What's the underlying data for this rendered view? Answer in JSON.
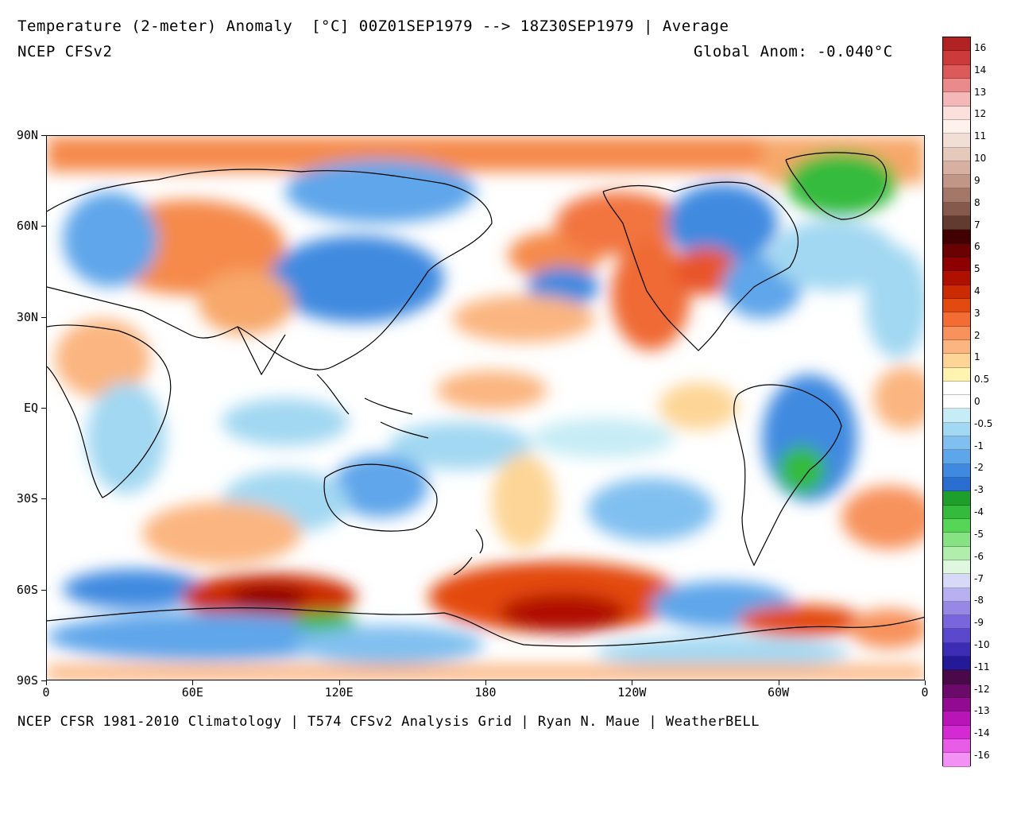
{
  "header": {
    "title": "Temperature (2-meter) Anomaly  [°C] 00Z01SEP1979 --> 18Z30SEP1979 | Average",
    "model": "NCEP CFSv2",
    "global_anom": "Global Anom: -0.040°C"
  },
  "footer": "NCEP CFSR 1981-2010 Climatology | T574 CFSv2 Analysis Grid | Ryan N. Maue | WeatherBELL",
  "map": {
    "lat_labels": [
      "90N",
      "60N",
      "30N",
      "EQ",
      "30S",
      "60S",
      "90S"
    ],
    "lat_values": [
      90,
      60,
      30,
      0,
      -30,
      -60,
      -90
    ],
    "lon_labels": [
      "0",
      "60E",
      "120E",
      "180",
      "120W",
      "60W",
      "0"
    ],
    "lon_values": [
      0,
      60,
      120,
      180,
      240,
      300,
      360
    ],
    "colors": {
      "ocean_neutral": "#ffffff",
      "land_outline": "#000000"
    }
  },
  "colorbar": {
    "labels": [
      "16",
      "14",
      "13",
      "12",
      "11",
      "10",
      "9",
      "8",
      "7",
      "6",
      "5",
      "4",
      "3",
      "2",
      "1",
      "0.5",
      "0",
      "-0.5",
      "-1",
      "-2",
      "-3",
      "-4",
      "-5",
      "-6",
      "-7",
      "-8",
      "-9",
      "-10",
      "-11",
      "-12",
      "-13",
      "-14",
      "-16"
    ],
    "colors": [
      "#b22222",
      "#cd3a3a",
      "#dd5a5a",
      "#ea8a8a",
      "#f5b8b8",
      "#fbe0dc",
      "#fff2ec",
      "#f1dfd6",
      "#e6c9bd",
      "#d7b0a2",
      "#c19687",
      "#a47868",
      "#85594b",
      "#613a30",
      "#420000",
      "#6a0000",
      "#8e0000",
      "#b01000",
      "#cc2a00",
      "#e34a10",
      "#f26c34",
      "#f7925c",
      "#fbb580",
      "#fdd596",
      "#fff3b0",
      "#ffffff",
      "#ffffff",
      "#c6ecf5",
      "#a2d8f2",
      "#80c0f0",
      "#5ea6ea",
      "#3f8ae0",
      "#2a6fcf",
      "#1e9e2a",
      "#34bb3c",
      "#55d655",
      "#86e283",
      "#b1eeae",
      "#dff7df",
      "#d8d8f8",
      "#b8b0f0",
      "#9888e6",
      "#7a66dc",
      "#5c48cc",
      "#3c2cb6",
      "#241a98",
      "#4a0a4a",
      "#6c0a6c",
      "#920a92",
      "#b814b8",
      "#d42ad4",
      "#e85ce8",
      "#f491f4"
    ]
  }
}
